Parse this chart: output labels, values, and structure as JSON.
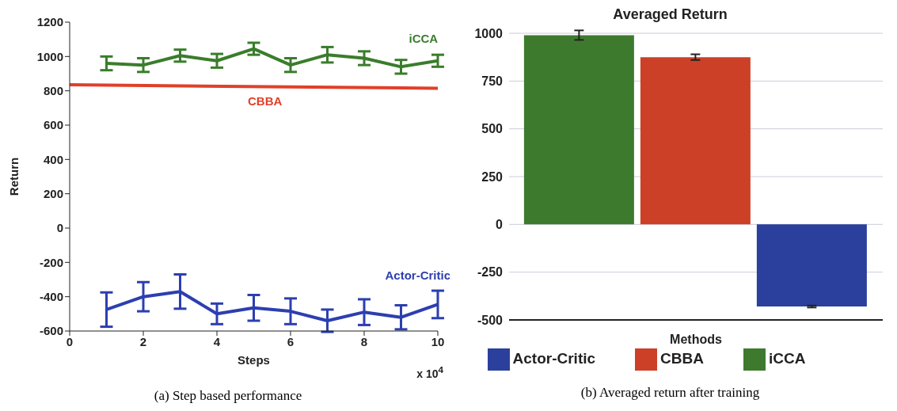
{
  "chart_data": [
    {
      "type": "line",
      "xlabel": "Steps",
      "ylabel": "Return",
      "xlim": [
        0,
        10
      ],
      "xticks": [
        0,
        2,
        4,
        6,
        8,
        10
      ],
      "ylim": [
        -600,
        1200
      ],
      "yticks": [
        -600,
        -400,
        -200,
        0,
        200,
        400,
        600,
        800,
        1000,
        1200
      ],
      "grid": false,
      "marker": "none",
      "line_style": "solid",
      "annotations": [
        "x 10$^{4}$",
        "(a) Step based performance"
      ],
      "series": [
        {
          "name": "iCCA",
          "color": "#3a7d2c",
          "x": [
            1,
            2,
            3,
            4,
            5,
            6,
            7,
            8,
            9,
            10
          ],
          "values": [
            960,
            950,
            1005,
            975,
            1045,
            950,
            1010,
            990,
            940,
            975
          ],
          "errors": [
            40,
            40,
            35,
            40,
            35,
            40,
            45,
            40,
            40,
            35
          ]
        },
        {
          "name": "CBBA",
          "color": "#e0402a",
          "x": [
            0,
            10
          ],
          "values": [
            835,
            815
          ]
        },
        {
          "name": "Actor-Critic",
          "color": "#2c3fb0",
          "x": [
            1,
            2,
            3,
            4,
            5,
            6,
            7,
            8,
            9,
            10
          ],
          "values": [
            -475,
            -400,
            -370,
            -500,
            -465,
            -485,
            -540,
            -490,
            -520,
            -445
          ],
          "errors": [
            100,
            85,
            100,
            60,
            75,
            75,
            65,
            75,
            70,
            80
          ]
        }
      ]
    },
    {
      "type": "bar",
      "title": "Averaged Return",
      "xlabel": "Methods",
      "categories": [
        null
      ],
      "ylim": [
        -500,
        1000
      ],
      "yticks": [
        -500,
        -250,
        0,
        250,
        500,
        750,
        1000
      ],
      "grid": "y",
      "legend": "bottom",
      "annotations": [
        "(b) Averaged return after training"
      ],
      "series": [
        {
          "name": "iCCA",
          "color": "#3e7a2e",
          "values": [
            990
          ],
          "errors": [
            25
          ]
        },
        {
          "name": "CBBA",
          "color": "#cc4028",
          "values": [
            875
          ],
          "errors": [
            15
          ]
        },
        {
          "name": "Actor-Critic",
          "color": "#2b3f9c",
          "values": [
            -430
          ],
          "errors": [
            5
          ]
        }
      ]
    }
  ]
}
